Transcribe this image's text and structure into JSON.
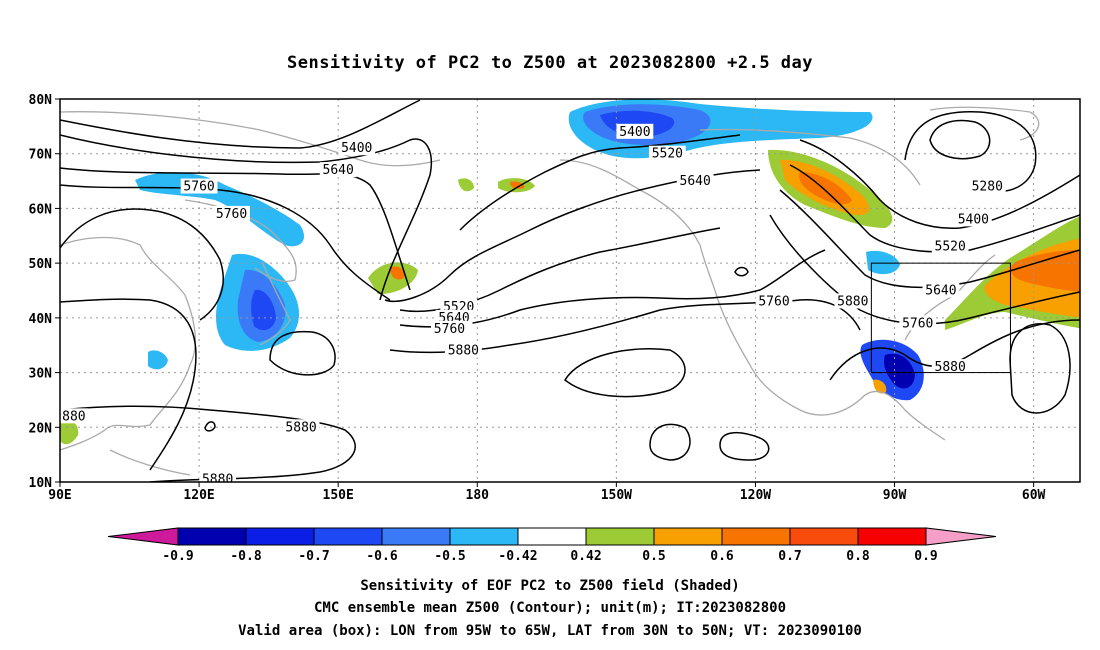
{
  "title": "Sensitivity of PC2 to Z500 at 2023082800 +2.5 day",
  "axes": {
    "lat_ticks": [
      "80N",
      "70N",
      "60N",
      "50N",
      "40N",
      "30N",
      "20N",
      "10N"
    ],
    "lon_ticks": [
      "90E",
      "120E",
      "150E",
      "180",
      "150W",
      "120W",
      "90W",
      "60W"
    ]
  },
  "contour_labels": [
    {
      "text": "5400",
      "lon": 154,
      "lat": 71
    },
    {
      "text": "5640",
      "lon": 150,
      "lat": 67
    },
    {
      "text": "5760",
      "lon": 120,
      "lat": 64
    },
    {
      "text": "5760",
      "lon": 127,
      "lat": 59
    },
    {
      "text": "5400",
      "lon": 214,
      "lat": 74
    },
    {
      "text": "5520",
      "lon": 221,
      "lat": 70
    },
    {
      "text": "5640",
      "lon": 227,
      "lat": 65
    },
    {
      "text": "5520",
      "lon": 176,
      "lat": 42
    },
    {
      "text": "5640",
      "lon": 175,
      "lat": 40
    },
    {
      "text": "5760",
      "lon": 174,
      "lat": 38
    },
    {
      "text": "5880",
      "lon": 177,
      "lat": 34
    },
    {
      "text": "5760",
      "lon": 244,
      "lat": 43
    },
    {
      "text": "5880",
      "lon": 261,
      "lat": 43
    },
    {
      "text": "5280",
      "lon": 290,
      "lat": 64
    },
    {
      "text": "5400",
      "lon": 287,
      "lat": 58
    },
    {
      "text": "5520",
      "lon": 282,
      "lat": 53
    },
    {
      "text": "5640",
      "lon": 280,
      "lat": 45
    },
    {
      "text": "5760",
      "lon": 275,
      "lat": 39
    },
    {
      "text": "5880",
      "lon": 282,
      "lat": 31
    },
    {
      "text": "5880",
      "lon": 142,
      "lat": 20
    },
    {
      "text": "5880",
      "lon": 124,
      "lat": 10.5
    },
    {
      "text": "880",
      "lon": 93,
      "lat": 22
    }
  ],
  "colorbar": {
    "labels": [
      "-0.9",
      "-0.8",
      "-0.7",
      "-0.6",
      "-0.5",
      "-0.42",
      "0.42",
      "0.5",
      "0.6",
      "0.7",
      "0.8",
      "0.9"
    ],
    "colors": [
      "#0000b0",
      "#0a1ee6",
      "#1f48f5",
      "#3a7af7",
      "#2cb8f5",
      "#ffffff",
      "#9ccb35",
      "#f7a000",
      "#f77400",
      "#f74c0c",
      "#f70000"
    ],
    "low_end_color": "#cc1a9b",
    "high_end_color": "#f59fc8"
  },
  "box": {
    "lon_min": 265,
    "lon_max": 295,
    "lat_min": 30,
    "lat_max": 50
  },
  "caption": [
    "Sensitivity of EOF PC2 to Z500 field (Shaded)",
    "CMC ensemble mean Z500 (Contour); unit(m); IT:2023082800",
    "Valid area (box): LON from 95W to 65W, LAT from 30N to 50N; VT: 2023090100"
  ]
}
